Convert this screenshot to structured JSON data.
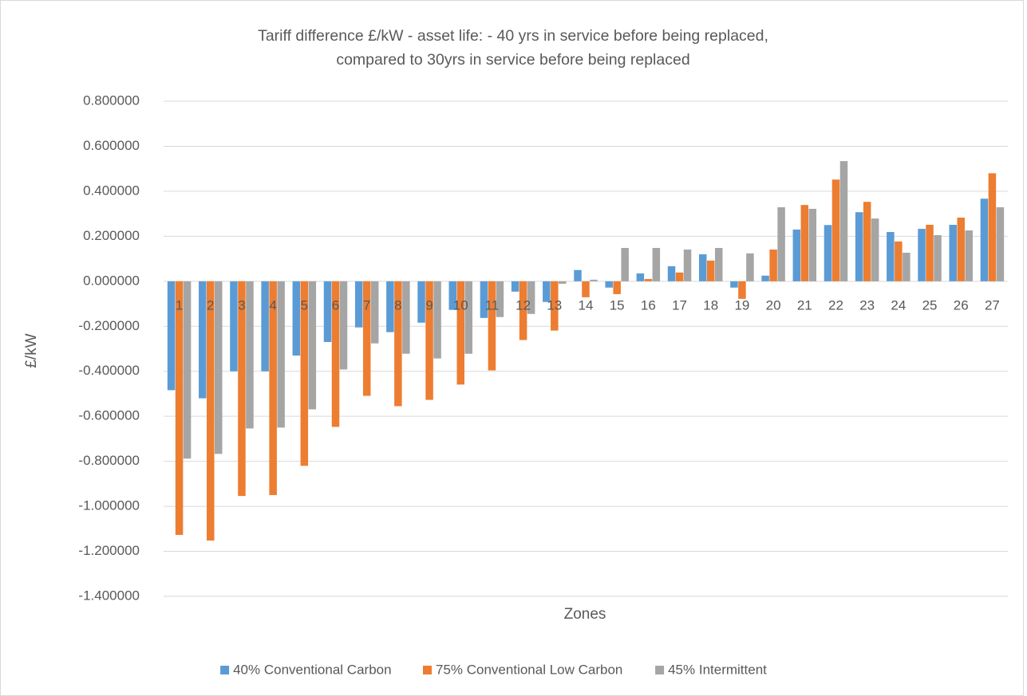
{
  "chart_data": {
    "type": "bar",
    "title": "Tariff difference £/kW - asset life: - 40 yrs in service before being replaced, compared to 30yrs in service before being replaced",
    "x_label": "Zones",
    "y_label": "£/kW",
    "categories": [
      "1",
      "2",
      "3",
      "4",
      "5",
      "6",
      "7",
      "8",
      "9",
      "10",
      "11",
      "12",
      "13",
      "14",
      "15",
      "16",
      "17",
      "18",
      "19",
      "20",
      "21",
      "22",
      "23",
      "24",
      "25",
      "26",
      "27"
    ],
    "series": [
      {
        "name": "40% Conventional Carbon",
        "color": "#5b9bd5",
        "values": [
          -0.484,
          -0.52,
          -0.4,
          -0.4,
          -0.33,
          -0.27,
          -0.205,
          -0.226,
          -0.184,
          -0.127,
          -0.163,
          -0.046,
          -0.092,
          0.05,
          -0.028,
          0.035,
          0.067,
          0.12,
          -0.028,
          0.025,
          0.23,
          0.25,
          0.307,
          0.219,
          0.233,
          0.251,
          0.367
        ]
      },
      {
        "name": "75% Conventional Low Carbon",
        "color": "#ed7d31",
        "values": [
          -1.127,
          -1.152,
          -0.954,
          -0.95,
          -0.82,
          -0.647,
          -0.509,
          -0.555,
          -0.527,
          -0.459,
          -0.396,
          -0.261,
          -0.219,
          -0.071,
          -0.057,
          0.01,
          0.039,
          0.092,
          -0.078,
          0.141,
          0.339,
          0.452,
          0.353,
          0.177,
          0.251,
          0.283,
          0.48
        ]
      },
      {
        "name": "45% Intermittent",
        "color": "#a5a5a5",
        "values": [
          -0.788,
          -0.767,
          -0.654,
          -0.65,
          -0.569,
          -0.392,
          -0.276,
          -0.322,
          -0.343,
          -0.322,
          -0.159,
          -0.145,
          -0.011,
          0.007,
          0.148,
          0.148,
          0.141,
          0.148,
          0.124,
          0.329,
          0.322,
          0.534,
          0.279,
          0.127,
          0.205,
          0.226,
          0.329
        ]
      }
    ],
    "ylim": [
      -1.4,
      0.8
    ],
    "yticks": [
      {
        "value": -1.4,
        "label": "-1.400000"
      },
      {
        "value": -1.2,
        "label": "-1.200000"
      },
      {
        "value": -1.0,
        "label": "-1.000000"
      },
      {
        "value": -0.8,
        "label": "-0.800000"
      },
      {
        "value": -0.6,
        "label": "-0.600000"
      },
      {
        "value": -0.4,
        "label": "-0.400000"
      },
      {
        "value": -0.2,
        "label": "-0.200000"
      },
      {
        "value": 0,
        "label": "0.000000"
      },
      {
        "value": 0.2,
        "label": "0.200000"
      },
      {
        "value": 0.4,
        "label": "0.400000"
      },
      {
        "value": 0.6,
        "label": "0.600000"
      },
      {
        "value": 0.8,
        "label": "0.800000"
      }
    ],
    "grid": true,
    "legend": "bottom"
  }
}
